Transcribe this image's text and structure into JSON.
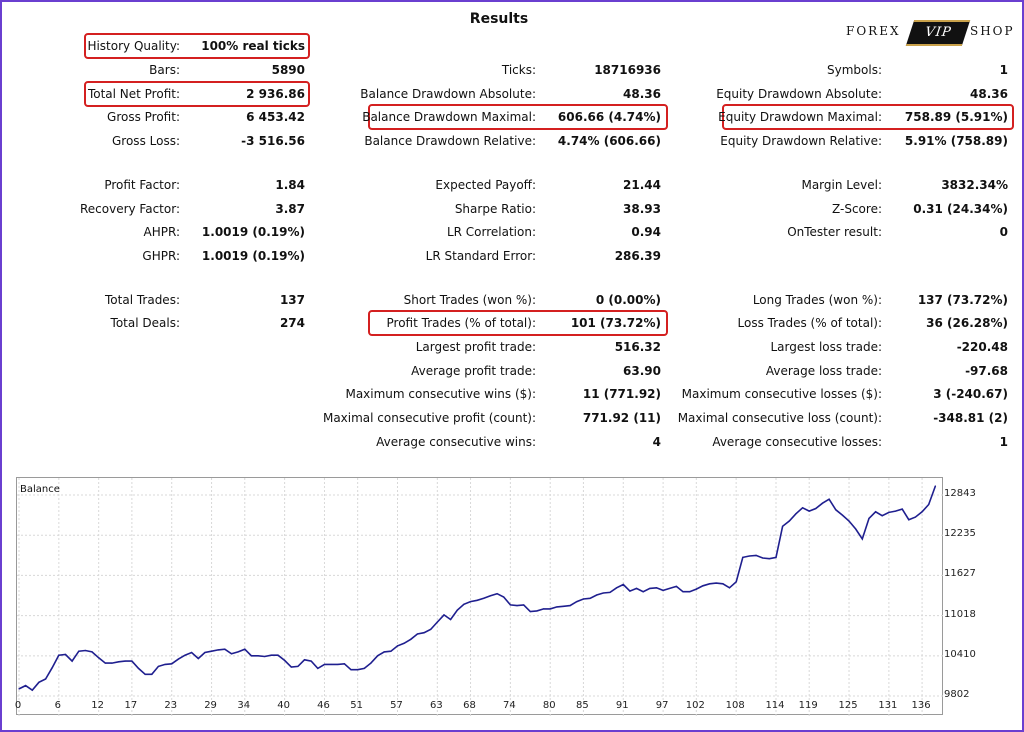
{
  "header": {
    "title": "Results",
    "logo": {
      "left": "FOREX",
      "badge": "VIP",
      "right": "SHOP"
    }
  },
  "col1": [
    {
      "label": "History Quality:",
      "value": "100% real ticks",
      "hl": true
    },
    {
      "label": "Bars:",
      "value": "5890"
    },
    {
      "label": "Total Net Profit:",
      "value": "2 936.86",
      "hl": true
    },
    {
      "label": "Gross Profit:",
      "value": "6 453.42"
    },
    {
      "label": "Gross Loss:",
      "value": "-3 516.56"
    },
    {
      "label": "Profit Factor:",
      "value": "1.84"
    },
    {
      "label": "Recovery Factor:",
      "value": "3.87"
    },
    {
      "label": "AHPR:",
      "value": "1.0019 (0.19%)"
    },
    {
      "label": "GHPR:",
      "value": "1.0019 (0.19%)"
    },
    {
      "label": "Total Trades:",
      "value": "137"
    },
    {
      "label": "Total Deals:",
      "value": "274"
    }
  ],
  "col2": [
    {
      "label": "Ticks:",
      "value": "18716936"
    },
    {
      "label": "Balance Drawdown Absolute:",
      "value": "48.36"
    },
    {
      "label": "Balance Drawdown Maximal:",
      "value": "606.66 (4.74%)",
      "hl": true
    },
    {
      "label": "Balance Drawdown Relative:",
      "value": "4.74% (606.66)"
    },
    {
      "label": "Expected Payoff:",
      "value": "21.44"
    },
    {
      "label": "Sharpe Ratio:",
      "value": "38.93"
    },
    {
      "label": "LR Correlation:",
      "value": "0.94"
    },
    {
      "label": "LR Standard Error:",
      "value": "286.39"
    },
    {
      "label": "Short Trades (won %):",
      "value": "0 (0.00%)"
    },
    {
      "label": "Profit Trades (% of total):",
      "value": "101 (73.72%)",
      "hl": true
    },
    {
      "label": "Largest profit trade:",
      "value": "516.32"
    },
    {
      "label": "Average profit trade:",
      "value": "63.90"
    },
    {
      "label": "Maximum consecutive wins ($):",
      "value": "11 (771.92)"
    },
    {
      "label": "Maximal consecutive profit (count):",
      "value": "771.92 (11)"
    },
    {
      "label": "Average consecutive wins:",
      "value": "4"
    }
  ],
  "col3": [
    {
      "label": "Symbols:",
      "value": "1"
    },
    {
      "label": "Equity Drawdown Absolute:",
      "value": "48.36"
    },
    {
      "label": "Equity Drawdown Maximal:",
      "value": "758.89 (5.91%)",
      "hl": true
    },
    {
      "label": "Equity Drawdown Relative:",
      "value": "5.91% (758.89)"
    },
    {
      "label": "Margin Level:",
      "value": "3832.34%"
    },
    {
      "label": "Z-Score:",
      "value": "0.31 (24.34%)"
    },
    {
      "label": "OnTester result:",
      "value": "0"
    },
    {
      "label": "Long Trades (won %):",
      "value": "137 (73.72%)"
    },
    {
      "label": "Loss Trades (% of total):",
      "value": "36 (26.28%)"
    },
    {
      "label": "Largest loss trade:",
      "value": "-220.48"
    },
    {
      "label": "Average loss trade:",
      "value": "-97.68"
    },
    {
      "label": "Maximum consecutive losses ($):",
      "value": "3 (-240.67)"
    },
    {
      "label": "Maximal consecutive loss (count):",
      "value": "-348.81 (2)"
    },
    {
      "label": "Average consecutive losses:",
      "value": "1"
    }
  ],
  "chart_data": {
    "type": "line",
    "title": "Balance",
    "line_color": "#1f1f8f",
    "grid": true,
    "xlim": [
      0,
      139
    ],
    "ylim": [
      9802,
      12980
    ],
    "xticks": [
      0,
      6,
      12,
      17,
      23,
      29,
      34,
      40,
      46,
      51,
      57,
      63,
      68,
      74,
      80,
      85,
      91,
      97,
      102,
      108,
      114,
      119,
      125,
      131,
      136
    ],
    "yticks": [
      9802,
      10410,
      11018,
      11627,
      12235,
      12843
    ],
    "series": [
      {
        "x": [
          0,
          1,
          2,
          3,
          4,
          5,
          6,
          7,
          8,
          9,
          10,
          11,
          12,
          13,
          14,
          15,
          16,
          17,
          18,
          19,
          20,
          21,
          22,
          23,
          24,
          25,
          26,
          27,
          28,
          29,
          30,
          31,
          32,
          33,
          34,
          35,
          36,
          37,
          38,
          39,
          40,
          41,
          42,
          43,
          44,
          45,
          46,
          47,
          48,
          49,
          50,
          51,
          52,
          53,
          54,
          55,
          56,
          57,
          58,
          59,
          60,
          61,
          62,
          63,
          64,
          65,
          66,
          67,
          68,
          69,
          70,
          71,
          72,
          73,
          74,
          75,
          76,
          77,
          78,
          79,
          80,
          81,
          82,
          83,
          84,
          85,
          86,
          87,
          88,
          89,
          90,
          91,
          92,
          93,
          94,
          95,
          96,
          97,
          98,
          99,
          100,
          101,
          102,
          103,
          104,
          105,
          106,
          107,
          108,
          109,
          110,
          111,
          112,
          113,
          114,
          115,
          116,
          117,
          118,
          119,
          120,
          121,
          122,
          123,
          124,
          125,
          126,
          127,
          128,
          129,
          130,
          131,
          132,
          133,
          134,
          135,
          136,
          137,
          138
        ],
        "y": [
          9910,
          9960,
          9890,
          10010,
          10060,
          10230,
          10420,
          10430,
          10330,
          10480,
          10490,
          10470,
          10380,
          10300,
          10300,
          10320,
          10330,
          10330,
          10220,
          10130,
          10130,
          10250,
          10280,
          10290,
          10360,
          10420,
          10460,
          10370,
          10460,
          10480,
          10500,
          10510,
          10440,
          10470,
          10510,
          10410,
          10410,
          10400,
          10420,
          10420,
          10340,
          10240,
          10250,
          10350,
          10330,
          10220,
          10280,
          10280,
          10280,
          10290,
          10200,
          10200,
          10220,
          10300,
          10410,
          10470,
          10480,
          10560,
          10600,
          10660,
          10740,
          10760,
          10810,
          10920,
          11030,
          10960,
          11100,
          11190,
          11230,
          11250,
          11280,
          11320,
          11350,
          11300,
          11180,
          11170,
          11180,
          11080,
          11090,
          11120,
          11120,
          11150,
          11160,
          11170,
          11230,
          11270,
          11280,
          11330,
          11360,
          11370,
          11440,
          11490,
          11390,
          11430,
          11380,
          11430,
          11440,
          11400,
          11430,
          11460,
          11380,
          11380,
          11420,
          11470,
          11500,
          11510,
          11500,
          11440,
          11530,
          11900,
          11920,
          11930,
          11890,
          11880,
          11900,
          12370,
          12450,
          12560,
          12650,
          12600,
          12640,
          12720,
          12780,
          12620,
          12540,
          12450,
          12330,
          12180,
          12490,
          12590,
          12530,
          12580,
          12600,
          12630,
          12470,
          12510,
          12590,
          12700,
          12980
        ]
      }
    ]
  }
}
